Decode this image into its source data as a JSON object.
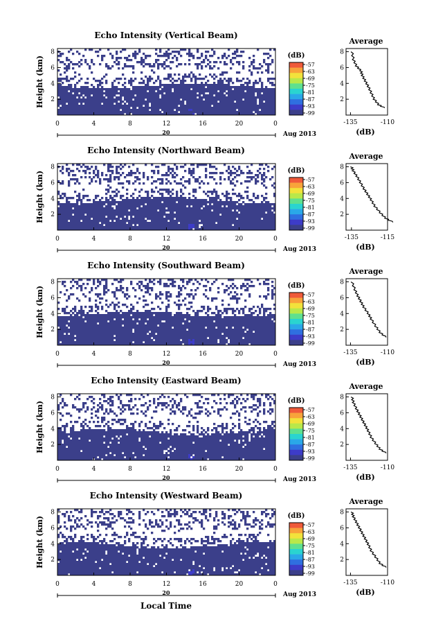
{
  "figure": {
    "date_label": "Aug 2013",
    "xlabel": "Local Time",
    "avg_title": "Average",
    "unit_label": "(dB)",
    "colors": [
      "#3b3f8a",
      "#3d3cc8",
      "#2f6fe0",
      "#2aa8e8",
      "#2ad4d0",
      "#5fe08f",
      "#b9e84a",
      "#f2e23b",
      "#f8a33a",
      "#ef5a3a"
    ]
  },
  "chart_data": [
    {
      "type": "heatmap",
      "title": "Echo Intensity (Vertical Beam)",
      "ylabel": "Height (km)",
      "x_ticks": [
        "0",
        "4",
        "8",
        "12",
        "16",
        "20",
        "0"
      ],
      "day_label": "20",
      "y_ticks": [
        "2",
        "4",
        "6",
        "8"
      ],
      "colorbar_ticks": [
        "-57",
        "-63",
        "-69",
        "-75",
        "-81",
        "-87",
        "-93",
        "-99"
      ],
      "avg_x_ticks": [
        "-135",
        "-110"
      ],
      "avg_y_ticks": [
        "2",
        "4",
        "6",
        "8"
      ],
      "dense_top_km": 3.7,
      "sparse_top_km": 8.0,
      "avg_profile": [
        [
          -112,
          0.9
        ],
        [
          -116,
          1.3
        ],
        [
          -119,
          2.0
        ],
        [
          -121,
          2.8
        ],
        [
          -123,
          3.6
        ],
        [
          -125,
          4.3
        ],
        [
          -127,
          5.0
        ],
        [
          -128,
          5.6
        ],
        [
          -131,
          6.2
        ],
        [
          -133,
          7.0
        ],
        [
          -134,
          8.0
        ]
      ]
    },
    {
      "type": "heatmap",
      "title": "Echo Intensity (Northward Beam)",
      "ylabel": "Height (km)",
      "x_ticks": [
        "0",
        "4",
        "8",
        "12",
        "16",
        "20",
        "0"
      ],
      "day_label": "20",
      "y_ticks": [
        "2",
        "4",
        "6",
        "8"
      ],
      "colorbar_ticks": [
        "-57",
        "-63",
        "-69",
        "-75",
        "-81",
        "-87",
        "-93",
        "-99"
      ],
      "avg_x_ticks": [
        "-135",
        "-115"
      ],
      "avg_y_ticks": [
        "2",
        "4",
        "6",
        "8"
      ],
      "dense_top_km": 3.8,
      "sparse_top_km": 8.0,
      "avg_profile": [
        [
          -112,
          1.0
        ],
        [
          -116,
          1.5
        ],
        [
          -119,
          2.2
        ],
        [
          -122,
          3.0
        ],
        [
          -124,
          3.8
        ],
        [
          -126,
          4.5
        ],
        [
          -128,
          5.2
        ],
        [
          -130,
          6.0
        ],
        [
          -132,
          6.8
        ],
        [
          -134,
          7.5
        ],
        [
          -135,
          8.0
        ]
      ]
    },
    {
      "type": "heatmap",
      "title": "Echo Intensity (Southward Beam)",
      "ylabel": "Height (km)",
      "x_ticks": [
        "0",
        "4",
        "8",
        "12",
        "16",
        "20",
        "0"
      ],
      "day_label": "20",
      "y_ticks": [
        "2",
        "4",
        "6",
        "8"
      ],
      "colorbar_ticks": [
        "-57",
        "-63",
        "-69",
        "-75",
        "-81",
        "-87",
        "-93",
        "-99"
      ],
      "avg_x_ticks": [
        "-135",
        "-110"
      ],
      "avg_y_ticks": [
        "2",
        "4",
        "6",
        "8"
      ],
      "dense_top_km": 3.9,
      "sparse_top_km": 8.0,
      "avg_profile": [
        [
          -111,
          1.0
        ],
        [
          -115,
          1.6
        ],
        [
          -118,
          2.4
        ],
        [
          -121,
          3.3
        ],
        [
          -123,
          4.0
        ],
        [
          -126,
          4.8
        ],
        [
          -128,
          5.5
        ],
        [
          -130,
          6.2
        ],
        [
          -132,
          7.0
        ],
        [
          -134,
          8.0
        ]
      ]
    },
    {
      "type": "heatmap",
      "title": "Echo Intensity (Eastward Beam)",
      "ylabel": "Height (km)",
      "x_ticks": [
        "0",
        "4",
        "8",
        "12",
        "16",
        "20",
        "0"
      ],
      "day_label": "20",
      "y_ticks": [
        "2",
        "4",
        "6",
        "8"
      ],
      "colorbar_ticks": [
        "-57",
        "-63",
        "-69",
        "-75",
        "-81",
        "-87",
        "-93",
        "-99"
      ],
      "avg_x_ticks": [
        "-135",
        "-110"
      ],
      "avg_y_ticks": [
        "2",
        "4",
        "6",
        "8"
      ],
      "dense_top_km": 3.6,
      "sparse_top_km": 8.0,
      "avg_profile": [
        [
          -111,
          0.9
        ],
        [
          -115,
          1.4
        ],
        [
          -118,
          2.1
        ],
        [
          -121,
          2.9
        ],
        [
          -123,
          3.7
        ],
        [
          -125,
          4.4
        ],
        [
          -127,
          5.1
        ],
        [
          -129,
          5.8
        ],
        [
          -131,
          6.5
        ],
        [
          -133,
          7.3
        ],
        [
          -134,
          8.0
        ]
      ]
    },
    {
      "type": "heatmap",
      "title": "Echo Intensity (Westward Beam)",
      "ylabel": "Height (km)",
      "x_ticks": [
        "0",
        "4",
        "8",
        "12",
        "16",
        "20",
        "0"
      ],
      "day_label": "20",
      "y_ticks": [
        "2",
        "4",
        "6",
        "8"
      ],
      "colorbar_ticks": [
        "-57",
        "-63",
        "-69",
        "-75",
        "-81",
        "-87",
        "-93",
        "-99"
      ],
      "avg_x_ticks": [
        "-135",
        "-110"
      ],
      "avg_y_ticks": [
        "2",
        "4",
        "6",
        "8"
      ],
      "dense_top_km": 3.8,
      "sparse_top_km": 8.0,
      "avg_profile": [
        [
          -111,
          1.0
        ],
        [
          -115,
          1.5
        ],
        [
          -118,
          2.3
        ],
        [
          -121,
          3.1
        ],
        [
          -123,
          3.9
        ],
        [
          -125,
          4.6
        ],
        [
          -127,
          5.3
        ],
        [
          -129,
          6.0
        ],
        [
          -131,
          6.7
        ],
        [
          -133,
          7.4
        ],
        [
          -134,
          8.0
        ]
      ]
    }
  ]
}
